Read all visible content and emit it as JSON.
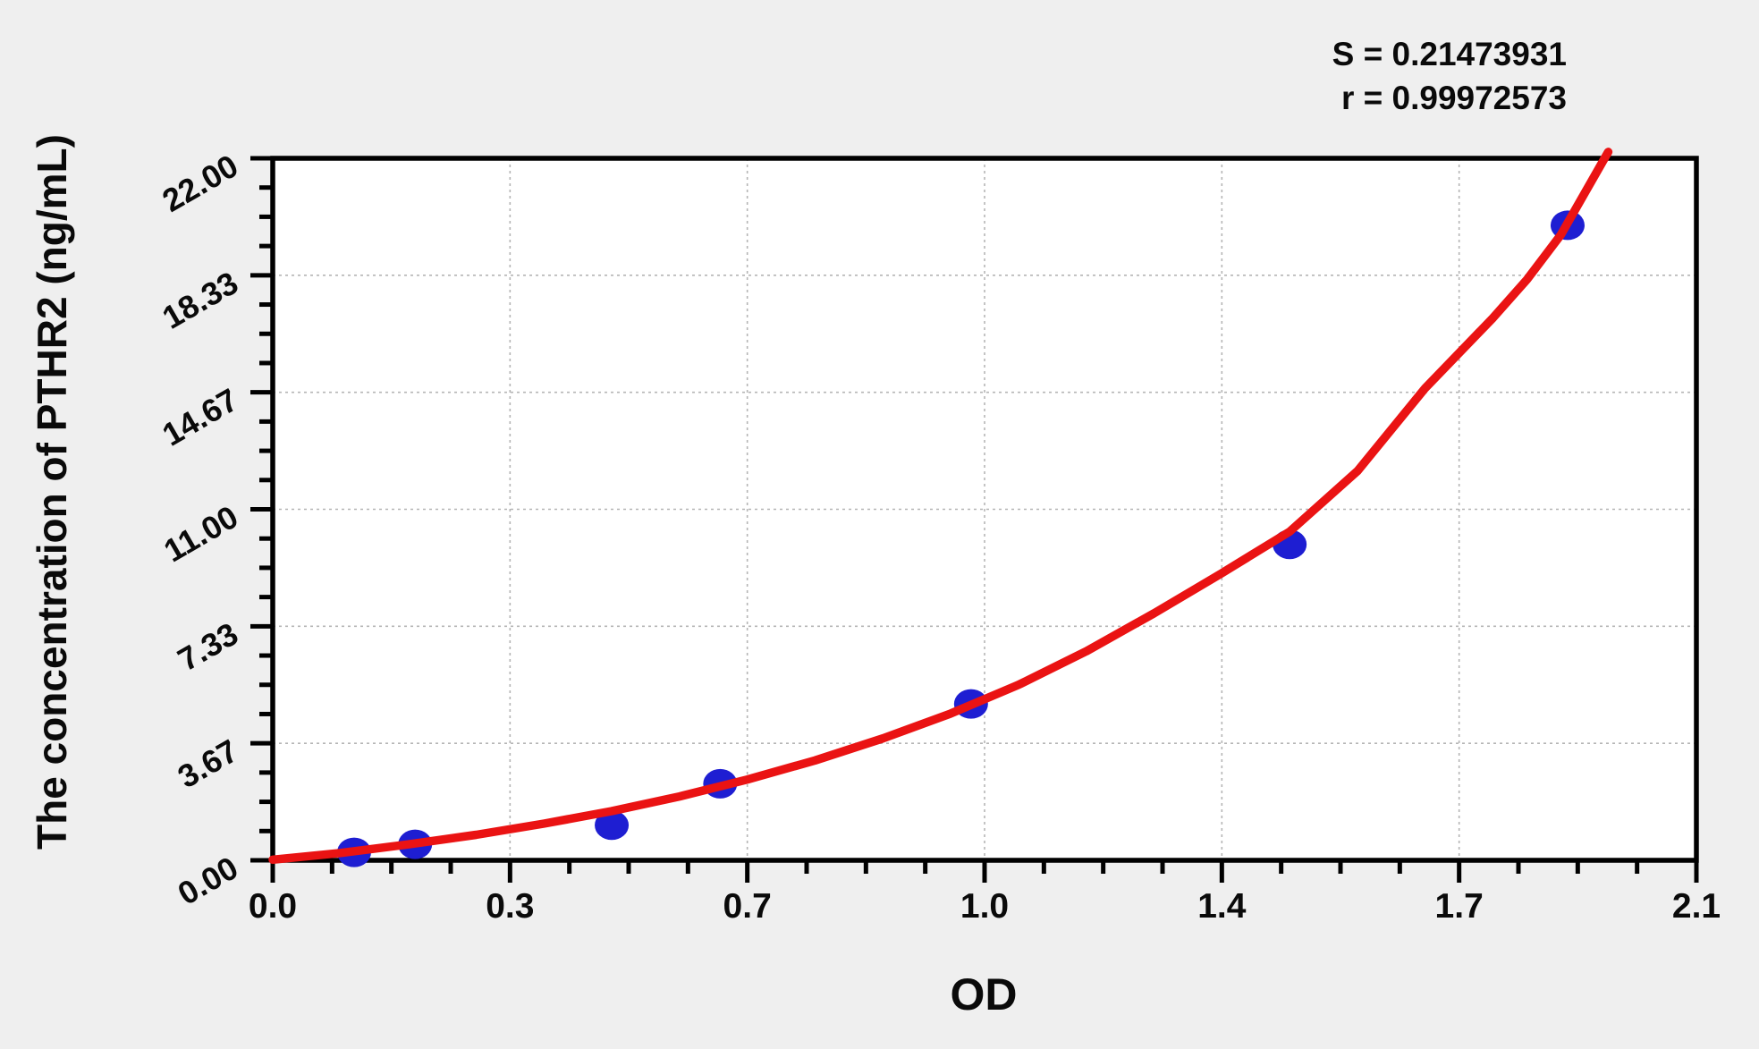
{
  "figure": {
    "background_color": "#efefef",
    "plot_background_color": "#ffffff",
    "axis_color": "#000000",
    "grid_color": "#b5b5b5"
  },
  "chart_data": {
    "type": "scatter",
    "title": "",
    "xlabel": "OD",
    "ylabel": "The concentration of PTHR2 (ng/mL)",
    "xlim": [
      0,
      2.1
    ],
    "ylim": [
      0,
      22
    ],
    "x_ticks": {
      "values": [
        0,
        0.35,
        0.7,
        1.05,
        1.4,
        1.75,
        2.1
      ],
      "labels": [
        "0.0",
        "0.3",
        "0.7",
        "1.0",
        "1.4",
        "1.7",
        "2.1"
      ]
    },
    "y_ticks": {
      "values": [
        0,
        3.6667,
        7.3333,
        11,
        14.6667,
        18.3333,
        22
      ],
      "labels": [
        "0.00",
        "3.67",
        "7.33",
        "11.00",
        "14.67",
        "18.33",
        "22.00"
      ]
    },
    "minor_ticks_per_interval": 3,
    "grid": {
      "enabled": true,
      "style": "dashed",
      "at": "major-ticks"
    },
    "annotations": [
      {
        "text": "S = 0.21473931"
      },
      {
        "text": "r = 0.99972573"
      }
    ],
    "series": [
      {
        "name": "standard-points",
        "kind": "scatter",
        "color": "#1e1ed2",
        "points": [
          [
            0.12,
            0.25
          ],
          [
            0.21,
            0.5
          ],
          [
            0.5,
            1.1
          ],
          [
            0.66,
            2.4
          ],
          [
            1.03,
            4.9
          ],
          [
            1.5,
            9.9
          ],
          [
            1.91,
            19.9
          ]
        ]
      },
      {
        "name": "fit-curve",
        "kind": "line",
        "color": "#ea1313",
        "points": [
          [
            0,
            0.02
          ],
          [
            0.1,
            0.23
          ],
          [
            0.2,
            0.5
          ],
          [
            0.3,
            0.8
          ],
          [
            0.4,
            1.15
          ],
          [
            0.5,
            1.54
          ],
          [
            0.6,
            2.0
          ],
          [
            0.7,
            2.53
          ],
          [
            0.8,
            3.13
          ],
          [
            0.9,
            3.82
          ],
          [
            1.0,
            4.6
          ],
          [
            1.1,
            5.5
          ],
          [
            1.2,
            6.55
          ],
          [
            1.3,
            7.74
          ],
          [
            1.4,
            9.0
          ],
          [
            1.5,
            10.3
          ],
          [
            1.6,
            12.2
          ],
          [
            1.7,
            14.8
          ],
          [
            1.8,
            17.0
          ],
          [
            1.85,
            18.2
          ],
          [
            1.9,
            19.6
          ],
          [
            1.97,
            22.2
          ]
        ]
      }
    ]
  }
}
